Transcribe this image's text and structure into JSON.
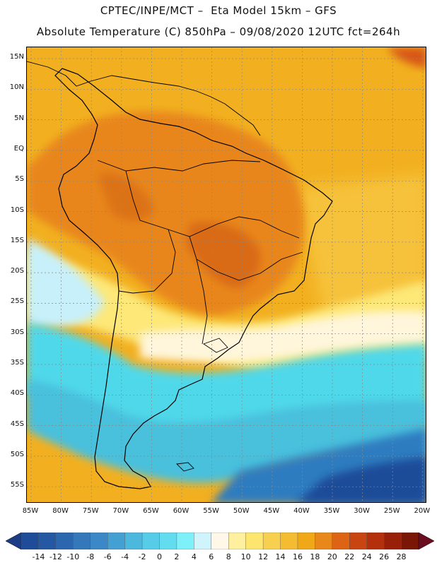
{
  "header": {
    "title_line1": "CPTEC/INPE/MCT –  Eta Model 15km – GFS",
    "title_line2": "Absolute Temperature (C) 850hPa – 09/08/2020 12UTC fct=264h"
  },
  "map": {
    "lat_labels": [
      "15N",
      "10N",
      "5N",
      "EQ",
      "5S",
      "10S",
      "15S",
      "20S",
      "25S",
      "30S",
      "35S",
      "40S",
      "45S",
      "50S",
      "55S"
    ],
    "lon_labels": [
      "85W",
      "80W",
      "75W",
      "70W",
      "65W",
      "60W",
      "55W",
      "50W",
      "45W",
      "40W",
      "35W",
      "30W",
      "25W",
      "20W"
    ],
    "colors": {
      "ocean_north": "#f2b020",
      "continent_hot": "#e8861a",
      "core_hot": "#d96a16",
      "subtropic_yellow": "#fde878",
      "pale": "#fff6dc",
      "cyan_light": "#c8f0fa",
      "cyan": "#50d8ea",
      "cyan_mid": "#48c0dc",
      "blue_south": "#2e7cc0",
      "blue_deep": "#1e4c98",
      "coast": "#000000"
    }
  },
  "colorbar": {
    "labels": [
      "-14",
      "-12",
      "-10",
      "-8",
      "-6",
      "-4",
      "-2",
      "0",
      "2",
      "4",
      "6",
      "8",
      "10",
      "12",
      "14",
      "16",
      "18",
      "20",
      "22",
      "24",
      "26",
      "28"
    ],
    "colors": [
      "#1e4c98",
      "#2458a2",
      "#2c66ae",
      "#3478ba",
      "#3c88c6",
      "#44a0d2",
      "#4cb8de",
      "#56cce8",
      "#64dcf0",
      "#7ef0fa",
      "#d0f4fc",
      "#fff8e8",
      "#fff0a0",
      "#fde670",
      "#f8d050",
      "#f4bc30",
      "#f0a818",
      "#e8881a",
      "#dc6414",
      "#c84410",
      "#b4300c",
      "#982008",
      "#7a1606"
    ],
    "low_arrow_color": "#1c3c86",
    "high_arrow_color": "#6a0e20"
  }
}
